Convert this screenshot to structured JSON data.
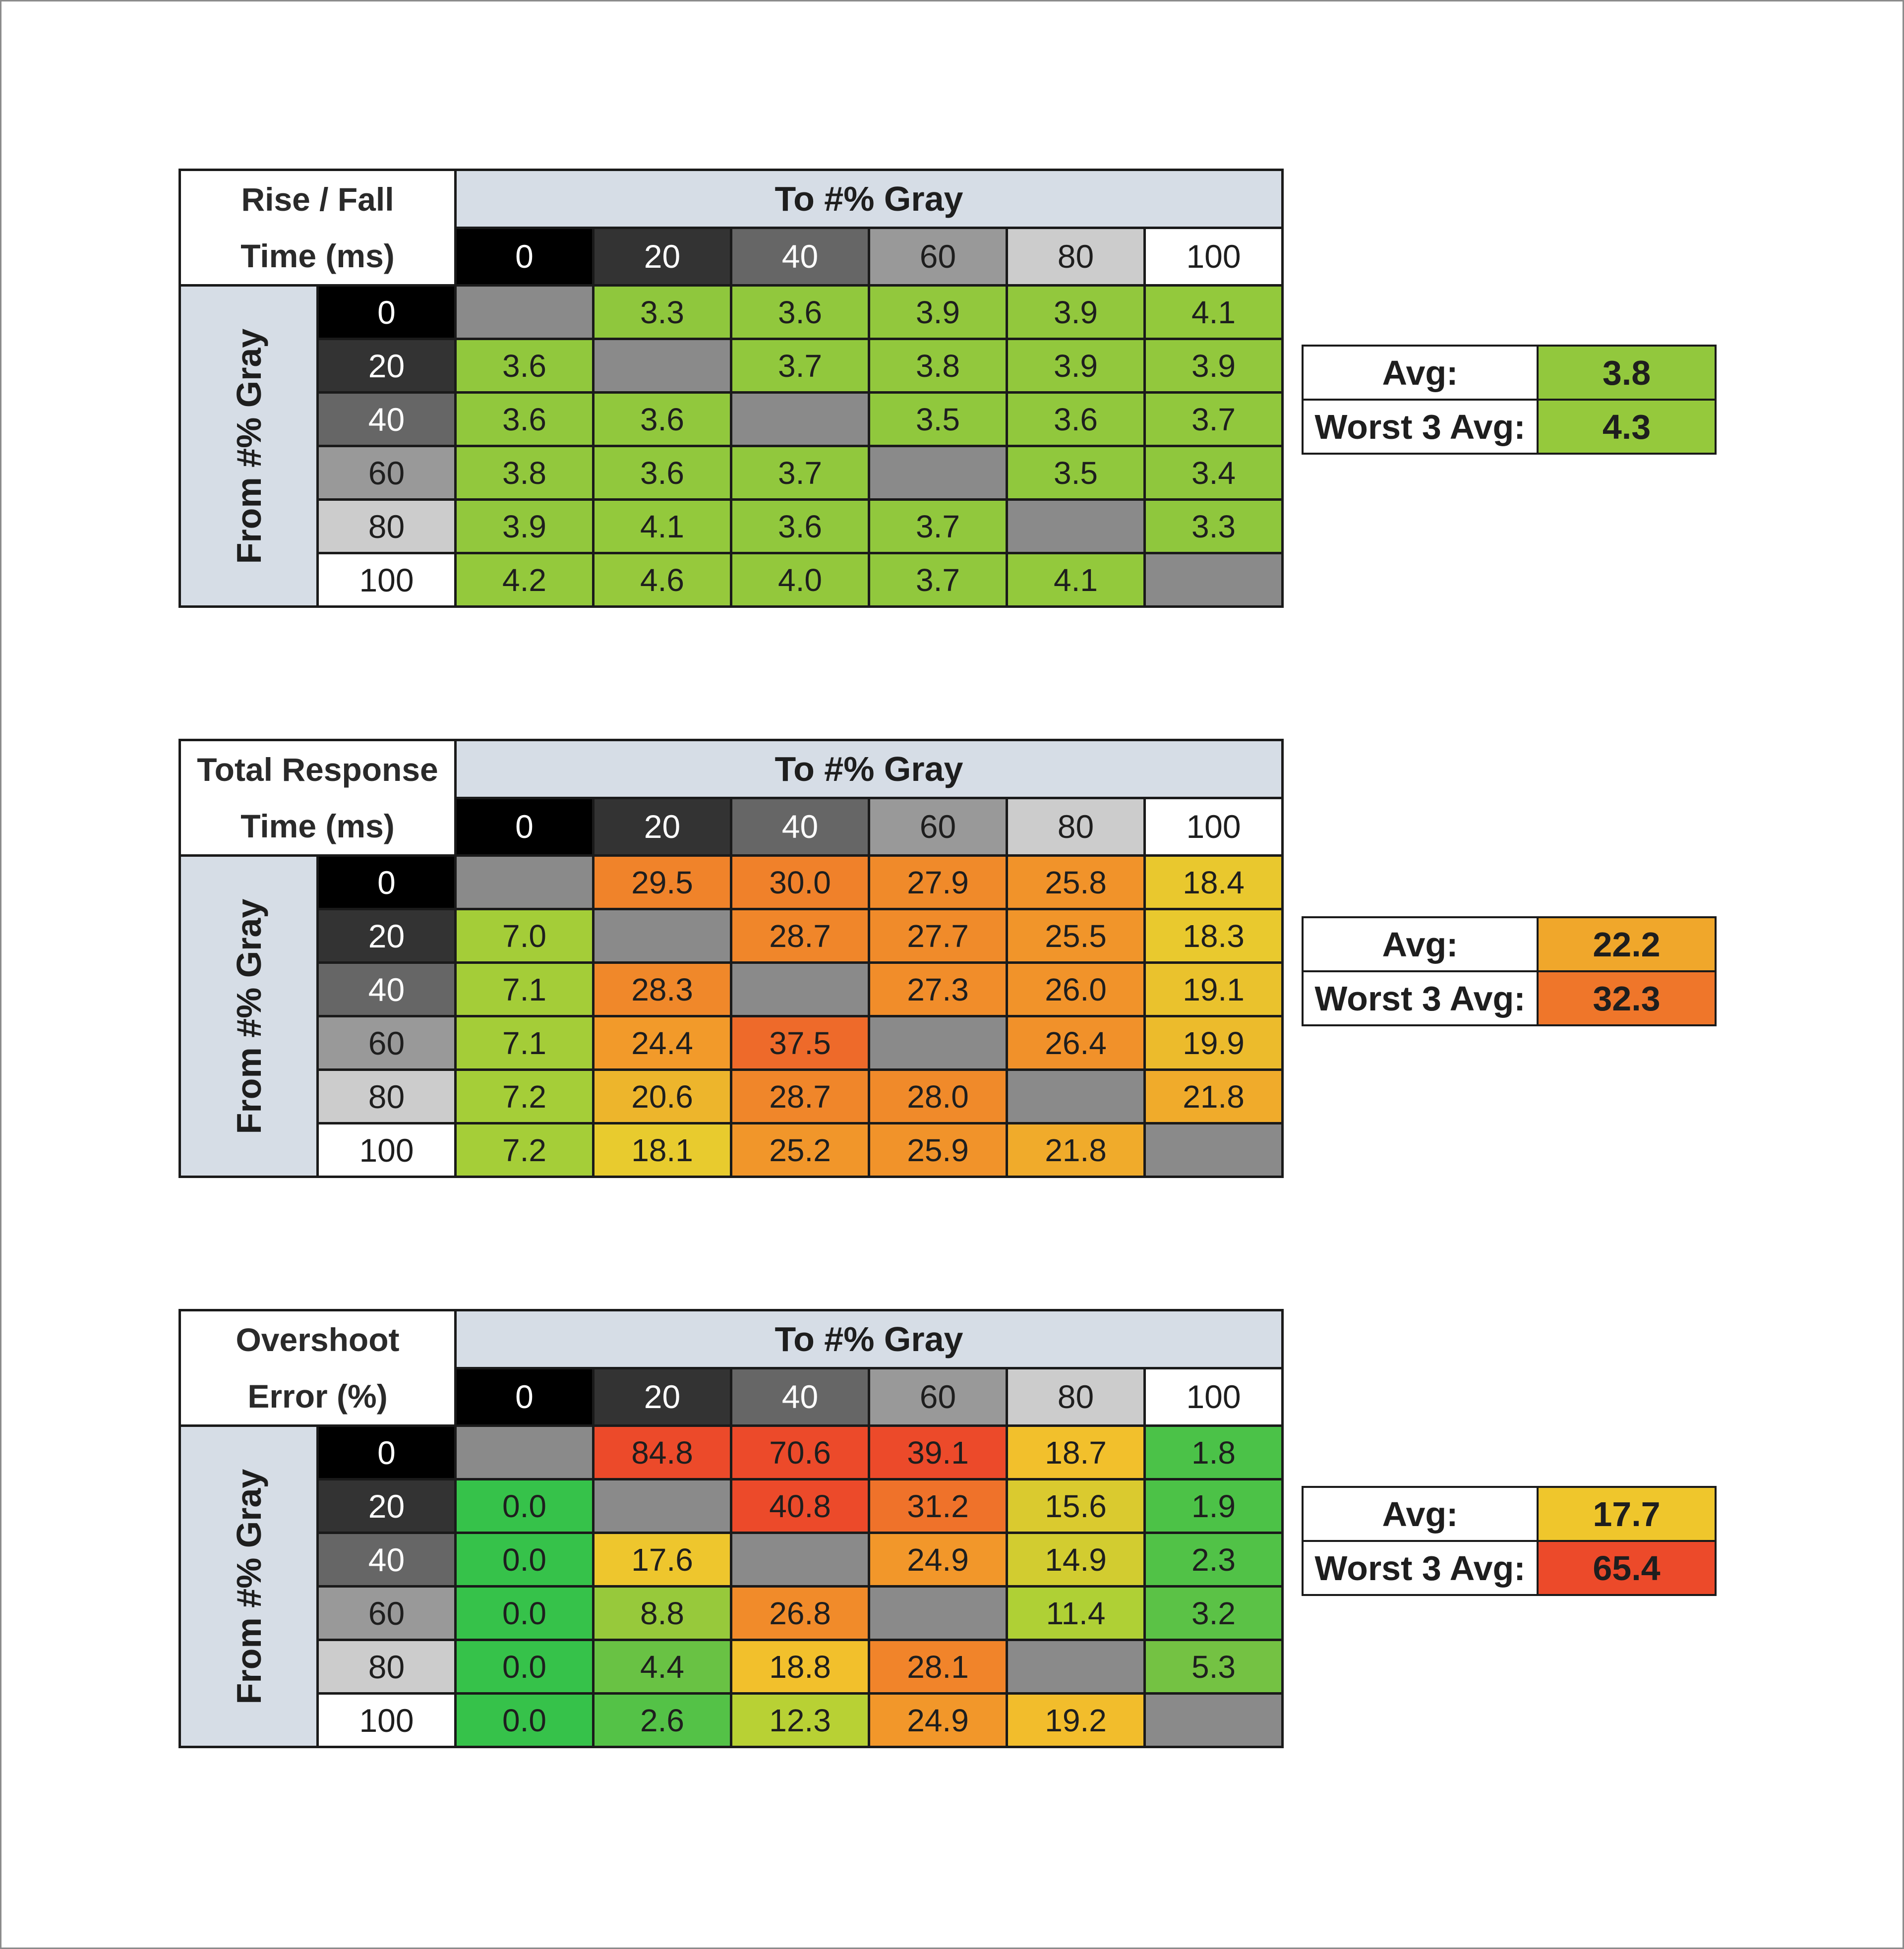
{
  "chart_data": [
    {
      "type": "heatmap",
      "title": "Rise / Fall Time (ms)",
      "title_lines": [
        "Rise / Fall",
        "Time (ms)"
      ],
      "xlabel": "To #% Gray",
      "ylabel": "From #% Gray",
      "x": [
        "0",
        "20",
        "40",
        "60",
        "80",
        "100"
      ],
      "y": [
        "0",
        "20",
        "40",
        "60",
        "80",
        "100"
      ],
      "values": [
        [
          null,
          "3.3",
          "3.6",
          "3.9",
          "3.9",
          "4.1"
        ],
        [
          "3.6",
          null,
          "3.7",
          "3.8",
          "3.9",
          "3.9"
        ],
        [
          "3.6",
          "3.6",
          null,
          "3.5",
          "3.6",
          "3.7"
        ],
        [
          "3.8",
          "3.6",
          "3.7",
          null,
          "3.5",
          "3.4"
        ],
        [
          "3.9",
          "4.1",
          "3.6",
          "3.7",
          null,
          "3.3"
        ],
        [
          "4.2",
          "4.6",
          "4.0",
          "3.7",
          "4.1",
          null
        ]
      ],
      "summary": [
        {
          "label": "Avg:",
          "value": "3.8"
        },
        {
          "label": "Worst 3 Avg:",
          "value": "4.3"
        }
      ],
      "color_scale": {
        "domain": [
          0,
          10,
          20,
          30,
          40
        ],
        "colors": [
          "#7cc242",
          "#b5d234",
          "#f2c52c",
          "#f2962a",
          "#ee5a2a"
        ]
      },
      "grid": true
    },
    {
      "type": "heatmap",
      "title": "Total Response Time (ms)",
      "title_lines": [
        "Total Response",
        "Time (ms)"
      ],
      "xlabel": "To #% Gray",
      "ylabel": "From #% Gray",
      "x": [
        "0",
        "20",
        "40",
        "60",
        "80",
        "100"
      ],
      "y": [
        "0",
        "20",
        "40",
        "60",
        "80",
        "100"
      ],
      "values": [
        [
          null,
          "29.5",
          "30.0",
          "27.9",
          "25.8",
          "18.4"
        ],
        [
          "7.0",
          null,
          "28.7",
          "27.7",
          "25.5",
          "18.3"
        ],
        [
          "7.1",
          "28.3",
          null,
          "27.3",
          "26.0",
          "19.1"
        ],
        [
          "7.1",
          "24.4",
          "37.5",
          null,
          "26.4",
          "19.9"
        ],
        [
          "7.2",
          "20.6",
          "28.7",
          "28.0",
          null,
          "21.8"
        ],
        [
          "7.2",
          "18.1",
          "25.2",
          "25.9",
          "21.8",
          null
        ]
      ],
      "summary": [
        {
          "label": "Avg:",
          "value": "22.2"
        },
        {
          "label": "Worst 3 Avg:",
          "value": "32.3"
        }
      ],
      "color_scale": {
        "domain": [
          0,
          10,
          18,
          23,
          35
        ],
        "colors": [
          "#7cc242",
          "#b5d234",
          "#e8cc2e",
          "#f2a02a",
          "#ee6a2a"
        ]
      },
      "grid": true
    },
    {
      "type": "heatmap",
      "title": "Overshoot Error (%)",
      "title_lines": [
        "Overshoot",
        "Error (%)"
      ],
      "xlabel": "To #% Gray",
      "ylabel": "From #% Gray",
      "x": [
        "0",
        "20",
        "40",
        "60",
        "80",
        "100"
      ],
      "y": [
        "0",
        "20",
        "40",
        "60",
        "80",
        "100"
      ],
      "values": [
        [
          null,
          "84.8",
          "70.6",
          "39.1",
          "18.7",
          "1.8"
        ],
        [
          "0.0",
          null,
          "40.8",
          "31.2",
          "15.6",
          "1.9"
        ],
        [
          "0.0",
          "17.6",
          null,
          "24.9",
          "14.9",
          "2.3"
        ],
        [
          "0.0",
          "8.8",
          "26.8",
          null,
          "11.4",
          "3.2"
        ],
        [
          "0.0",
          "4.4",
          "18.8",
          "28.1",
          null,
          "5.3"
        ],
        [
          "0.0",
          "2.6",
          "12.3",
          "24.9",
          "19.2",
          null
        ]
      ],
      "summary": [
        {
          "label": "Avg:",
          "value": "17.7"
        },
        {
          "label": "Worst 3 Avg:",
          "value": "65.4"
        }
      ],
      "color_scale": {
        "domain": [
          0,
          6,
          12,
          18,
          25,
          38
        ],
        "colors": [
          "#36c24a",
          "#7cc242",
          "#b5d234",
          "#f2c52c",
          "#f2962a",
          "#ec4a2a"
        ]
      },
      "grid": true
    }
  ],
  "colors": {
    "header_bg": "#d6dde6",
    "diagonal": "#8a8a8a",
    "gray_0": "#000000",
    "gray_20": "#333333",
    "gray_40": "#666666",
    "gray_60": "#999999",
    "gray_80": "#cccccc",
    "gray_100": "#ffffff"
  }
}
